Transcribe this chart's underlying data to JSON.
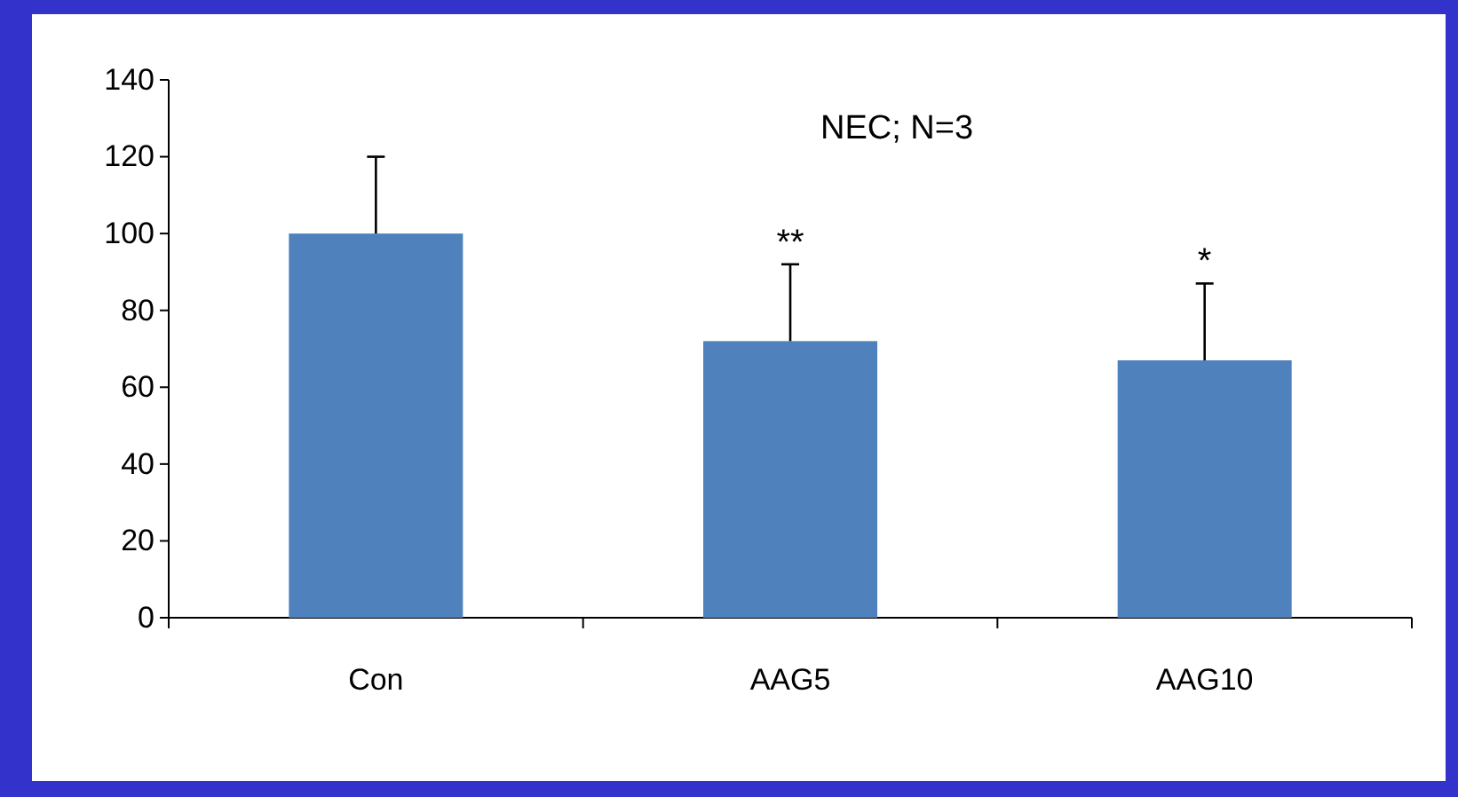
{
  "chart_data": {
    "type": "bar",
    "title": "NEC;  N=3",
    "categories": [
      "Con",
      "AAG5",
      "AAG10"
    ],
    "values": [
      100,
      72,
      67
    ],
    "color": "#4f81bd",
    "errors": [
      [
        100,
        120
      ],
      [
        72,
        92
      ],
      [
        67,
        87
      ]
    ],
    "ylim": [
      0,
      140
    ],
    "yticks": [
      0,
      20,
      40,
      60,
      80,
      100,
      120,
      140
    ],
    "grid": false,
    "annotations": [
      {
        "text": "**",
        "x": "AAG5",
        "y": 92
      },
      {
        "text": "*",
        "x": "AAG10",
        "y": 87
      }
    ]
  }
}
